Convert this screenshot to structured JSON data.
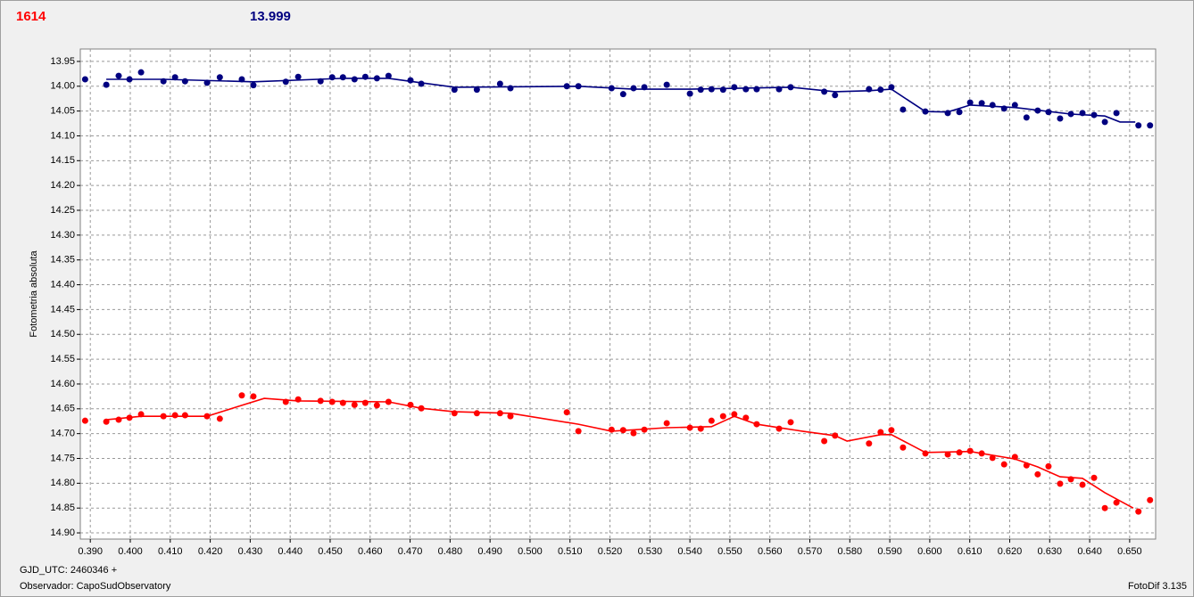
{
  "chart_data": {
    "type": "scatter",
    "header_left": "1614",
    "header_right": "13.999",
    "ylabel": "Fotometria absoluta",
    "footer_line1": "GJD_UTC: 2460346 +",
    "footer_line2": "Observador: CapoSudObservatory",
    "footer_right": "FotoDif 3.135",
    "grid": true,
    "y_inverted": true,
    "xlim": [
      0.3875,
      0.6565
    ],
    "ylim": [
      13.925,
      14.9125
    ],
    "xticks": [
      {
        "value": 0.39,
        "label": "0.390"
      },
      {
        "value": 0.4,
        "label": "0.400"
      },
      {
        "value": 0.41,
        "label": "0.410"
      },
      {
        "value": 0.42,
        "label": "0.420"
      },
      {
        "value": 0.43,
        "label": "0.430"
      },
      {
        "value": 0.44,
        "label": "0.440"
      },
      {
        "value": 0.45,
        "label": "0.450"
      },
      {
        "value": 0.46,
        "label": "0.460"
      },
      {
        "value": 0.47,
        "label": "0.470"
      },
      {
        "value": 0.48,
        "label": "0.480"
      },
      {
        "value": 0.49,
        "label": "0.490"
      },
      {
        "value": 0.5,
        "label": "0.500"
      },
      {
        "value": 0.51,
        "label": "0.510"
      },
      {
        "value": 0.52,
        "label": "0.520"
      },
      {
        "value": 0.53,
        "label": "0.530"
      },
      {
        "value": 0.54,
        "label": "0.540"
      },
      {
        "value": 0.55,
        "label": "0.550"
      },
      {
        "value": 0.56,
        "label": "0.560"
      },
      {
        "value": 0.57,
        "label": "0.570"
      },
      {
        "value": 0.58,
        "label": "0.580"
      },
      {
        "value": 0.59,
        "label": "0.590"
      },
      {
        "value": 0.6,
        "label": "0.600"
      },
      {
        "value": 0.61,
        "label": "0.610"
      },
      {
        "value": 0.62,
        "label": "0.620"
      },
      {
        "value": 0.63,
        "label": "0.630"
      },
      {
        "value": 0.64,
        "label": "0.640"
      },
      {
        "value": 0.65,
        "label": "0.650"
      }
    ],
    "yticks": [
      13.95,
      {
        "value": 14,
        "label": "14.00"
      },
      14.05,
      {
        "value": 14.1,
        "label": "14.10"
      },
      14.15,
      {
        "value": 14.2,
        "label": "14.20"
      },
      14.25,
      {
        "value": 14.3,
        "label": "14.30"
      },
      14.35,
      {
        "value": 14.4,
        "label": "14.40"
      },
      14.45,
      {
        "value": 14.5,
        "label": "14.50"
      },
      14.55,
      {
        "value": 14.6,
        "label": "14.60"
      },
      14.65,
      {
        "value": 14.7,
        "label": "14.70"
      },
      14.75,
      {
        "value": 14.8,
        "label": "14.80"
      },
      14.85,
      {
        "value": 14.9,
        "label": "14.90"
      }
    ],
    "series": [
      {
        "color": "#000080",
        "mode": "markers",
        "x": [
          0.3887,
          0.394,
          0.3971,
          0.3998,
          0.4027,
          0.4083,
          0.4112,
          0.4137,
          0.4192,
          0.4224,
          0.4279,
          0.4308,
          0.4389,
          0.442,
          0.4476,
          0.4505,
          0.4532,
          0.4561,
          0.4588,
          0.4617,
          0.4646,
          0.4701,
          0.4728,
          0.4811,
          0.4867,
          0.4925,
          0.4951,
          0.5092,
          0.5121,
          0.5204,
          0.5233,
          0.5259,
          0.5286,
          0.5342,
          0.54,
          0.5427,
          0.5454,
          0.5483,
          0.5511,
          0.554,
          0.5567,
          0.5623,
          0.5652,
          0.5736,
          0.5763,
          0.5848,
          0.5877,
          0.5904,
          0.5933,
          0.5989,
          0.6045,
          0.6074,
          0.6101,
          0.613,
          0.6157,
          0.6186,
          0.6213,
          0.6242,
          0.627,
          0.6297,
          0.6326,
          0.6353,
          0.6382,
          0.6411,
          0.6438,
          0.6467,
          0.6522,
          0.6551
        ],
        "values": [
          13.986,
          13.997,
          13.979,
          13.986,
          13.972,
          13.99,
          13.982,
          13.99,
          13.993,
          13.982,
          13.986,
          13.998,
          13.991,
          13.981,
          13.99,
          13.982,
          13.982,
          13.986,
          13.981,
          13.984,
          13.979,
          13.988,
          13.995,
          14.007,
          14.007,
          13.995,
          14.004,
          14.0,
          14.0,
          14.004,
          14.016,
          14.004,
          14.002,
          13.997,
          14.015,
          14.007,
          14.006,
          14.007,
          14.002,
          14.006,
          14.006,
          14.006,
          14.002,
          14.011,
          14.018,
          14.006,
          14.007,
          14.002,
          14.047,
          14.051,
          14.054,
          14.052,
          14.033,
          14.034,
          14.038,
          14.045,
          14.038,
          14.063,
          14.049,
          14.052,
          14.065,
          14.056,
          14.054,
          14.058,
          14.072,
          14.054,
          14.079,
          14.079
        ]
      },
      {
        "color": "#ff0000",
        "mode": "markers",
        "x": [
          0.3887,
          0.394,
          0.3971,
          0.3998,
          0.4027,
          0.4083,
          0.4112,
          0.4137,
          0.4192,
          0.4224,
          0.4279,
          0.4308,
          0.4389,
          0.442,
          0.4476,
          0.4505,
          0.4532,
          0.4561,
          0.4588,
          0.4617,
          0.4646,
          0.4701,
          0.4728,
          0.4811,
          0.4867,
          0.4925,
          0.4951,
          0.5092,
          0.5121,
          0.5204,
          0.5233,
          0.5259,
          0.5286,
          0.5342,
          0.54,
          0.5427,
          0.5454,
          0.5483,
          0.5511,
          0.554,
          0.5567,
          0.5623,
          0.5652,
          0.5736,
          0.5763,
          0.5848,
          0.5877,
          0.5904,
          0.5933,
          0.5989,
          0.6045,
          0.6074,
          0.6101,
          0.613,
          0.6157,
          0.6186,
          0.6213,
          0.6242,
          0.627,
          0.6297,
          0.6326,
          0.6353,
          0.6382,
          0.6411,
          0.6438,
          0.6467,
          0.6522,
          0.6551
        ],
        "values": [
          14.674,
          14.676,
          14.672,
          14.668,
          14.661,
          14.665,
          14.663,
          14.663,
          14.665,
          14.67,
          14.623,
          14.625,
          14.636,
          14.631,
          14.634,
          14.636,
          14.638,
          14.642,
          14.638,
          14.643,
          14.636,
          14.642,
          14.649,
          14.659,
          14.659,
          14.659,
          14.665,
          14.657,
          14.695,
          14.692,
          14.693,
          14.699,
          14.692,
          14.679,
          14.688,
          14.69,
          14.674,
          14.665,
          14.661,
          14.668,
          14.681,
          14.69,
          14.677,
          14.715,
          14.704,
          14.72,
          14.697,
          14.693,
          14.728,
          14.74,
          14.742,
          14.738,
          14.735,
          14.74,
          14.749,
          14.762,
          14.747,
          14.764,
          14.782,
          14.766,
          14.801,
          14.792,
          14.803,
          14.789,
          14.85,
          14.839,
          14.857,
          14.834
        ]
      },
      {
        "color": "#000080",
        "mode": "line",
        "x": [
          0.394,
          0.4083,
          0.4308,
          0.4532,
          0.4646,
          0.4728,
          0.4811,
          0.5121,
          0.5259,
          0.54,
          0.5652,
          0.5763,
          0.5848,
          0.5904,
          0.5989,
          0.6045,
          0.6101,
          0.6213,
          0.6353,
          0.6438,
          0.6476,
          0.6514
        ],
        "values": [
          13.986,
          13.986,
          13.991,
          13.984,
          13.984,
          13.993,
          14.002,
          14.0,
          14.006,
          14.006,
          14.002,
          14.011,
          14.009,
          14.006,
          14.051,
          14.052,
          14.038,
          14.043,
          14.056,
          14.06,
          14.072,
          14.072
        ]
      },
      {
        "color": "#ff0000",
        "mode": "line",
        "x": [
          0.394,
          0.4027,
          0.4192,
          0.4279,
          0.4335,
          0.442,
          0.4646,
          0.4728,
          0.4811,
          0.4951,
          0.5121,
          0.5204,
          0.5342,
          0.5454,
          0.5511,
          0.5567,
          0.5681,
          0.5763,
          0.5793,
          0.5877,
          0.5904,
          0.5989,
          0.6101,
          0.6213,
          0.627,
          0.6326,
          0.6382,
          0.6438,
          0.6509
        ],
        "values": [
          14.672,
          14.665,
          14.665,
          14.643,
          14.629,
          14.634,
          14.636,
          14.649,
          14.656,
          14.659,
          14.681,
          14.695,
          14.688,
          14.686,
          14.665,
          14.681,
          14.695,
          14.704,
          14.715,
          14.702,
          14.702,
          14.738,
          14.736,
          14.751,
          14.767,
          14.787,
          14.79,
          14.819,
          14.85
        ]
      }
    ]
  }
}
